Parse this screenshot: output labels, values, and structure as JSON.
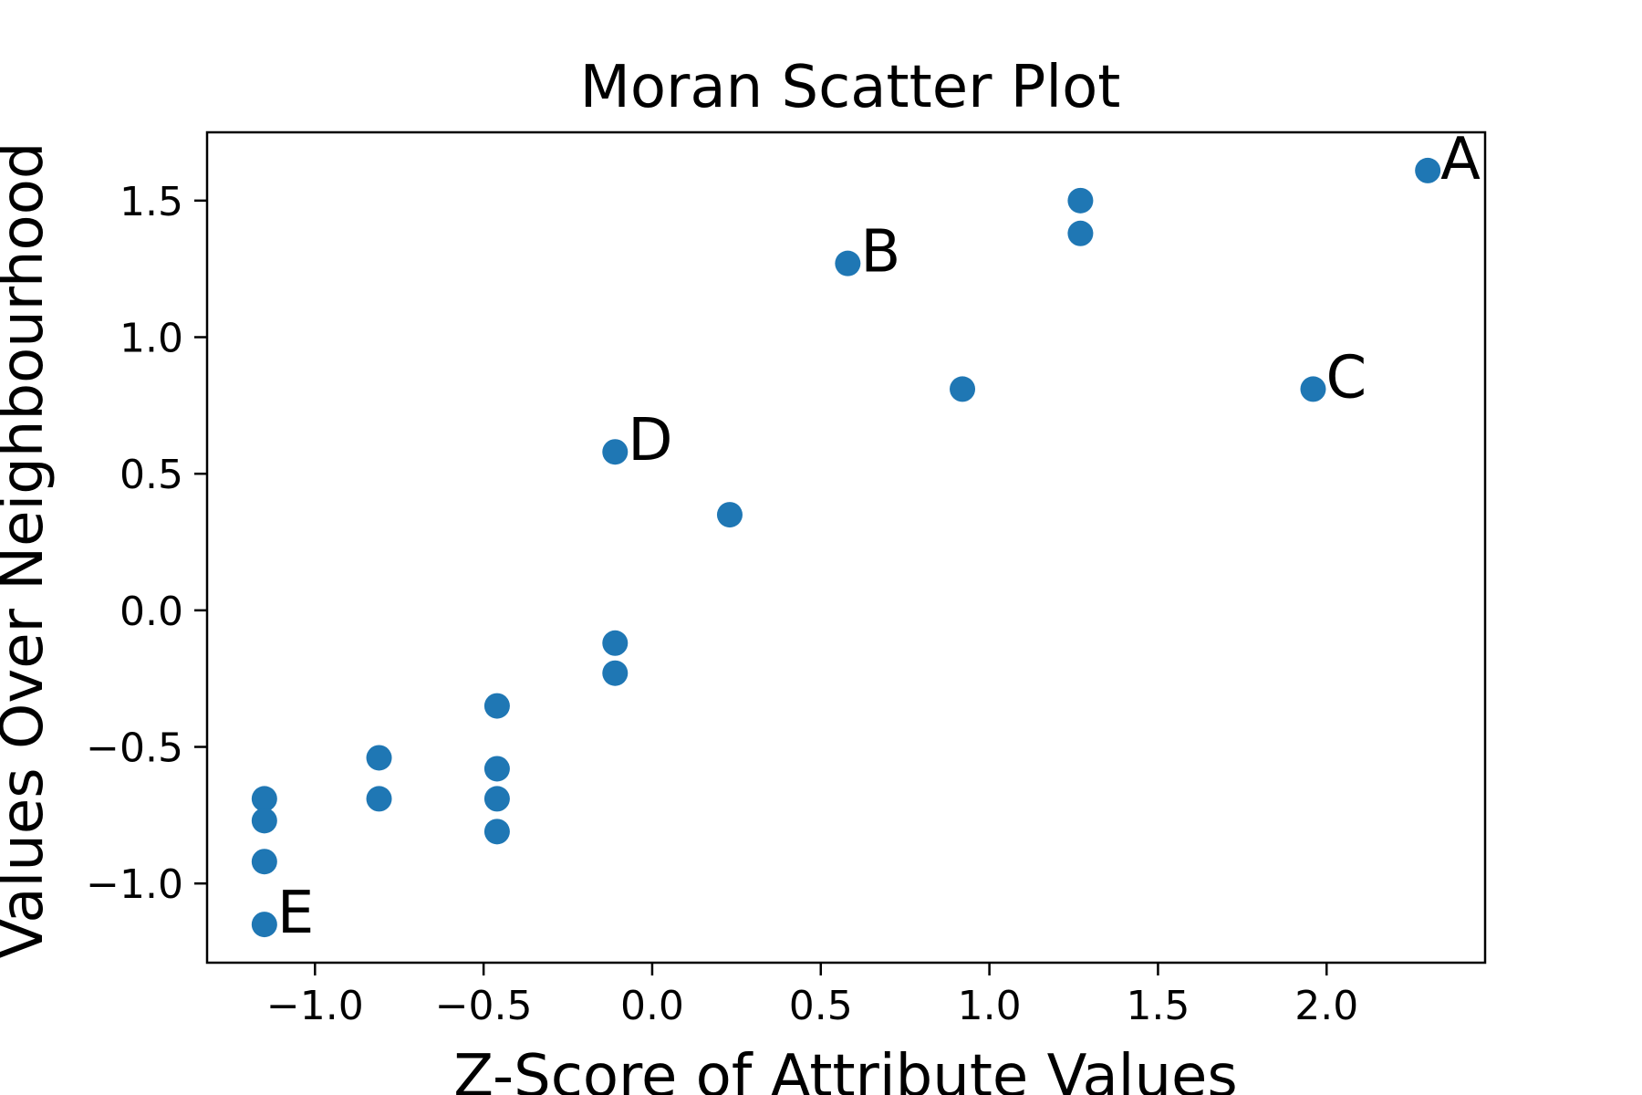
{
  "chart_data": {
    "type": "scatter",
    "title": "Moran Scatter Plot",
    "xlabel": "Z-Score of Attribute Values",
    "ylabel": "Values Over Neighbourhood",
    "xlim": [
      -1.32,
      2.47
    ],
    "ylim": [
      -1.29,
      1.75
    ],
    "xticks": [
      -1.0,
      -0.5,
      0.0,
      0.5,
      1.0,
      1.5,
      2.0
    ],
    "xtick_labels": [
      "−1.0",
      "−0.5",
      "0.0",
      "0.5",
      "1.0",
      "1.5",
      "2.0"
    ],
    "yticks": [
      -1.0,
      -0.5,
      0.0,
      0.5,
      1.0,
      1.5
    ],
    "ytick_labels": [
      "−1.0",
      "−0.5",
      "0.0",
      "0.5",
      "1.0",
      "1.5"
    ],
    "grid": false,
    "marker_color": "#1f77b4",
    "series": [
      {
        "points": [
          {
            "x": 2.3,
            "y": 1.61,
            "label": "A"
          },
          {
            "x": 0.58,
            "y": 1.27,
            "label": "B"
          },
          {
            "x": 1.96,
            "y": 0.81,
            "label": "C"
          },
          {
            "x": -0.11,
            "y": 0.58,
            "label": "D"
          },
          {
            "x": -1.15,
            "y": -1.15,
            "label": "E"
          },
          {
            "x": 1.27,
            "y": 1.5
          },
          {
            "x": 1.27,
            "y": 1.38
          },
          {
            "x": 0.92,
            "y": 0.81
          },
          {
            "x": 0.23,
            "y": 0.35
          },
          {
            "x": -0.11,
            "y": -0.12
          },
          {
            "x": -0.11,
            "y": -0.23
          },
          {
            "x": -0.46,
            "y": -0.35
          },
          {
            "x": -0.46,
            "y": -0.58
          },
          {
            "x": -0.46,
            "y": -0.69
          },
          {
            "x": -0.46,
            "y": -0.81
          },
          {
            "x": -0.81,
            "y": -0.54
          },
          {
            "x": -0.81,
            "y": -0.69
          },
          {
            "x": -1.15,
            "y": -0.69
          },
          {
            "x": -1.15,
            "y": -0.77
          },
          {
            "x": -1.15,
            "y": -0.92
          }
        ]
      }
    ]
  }
}
